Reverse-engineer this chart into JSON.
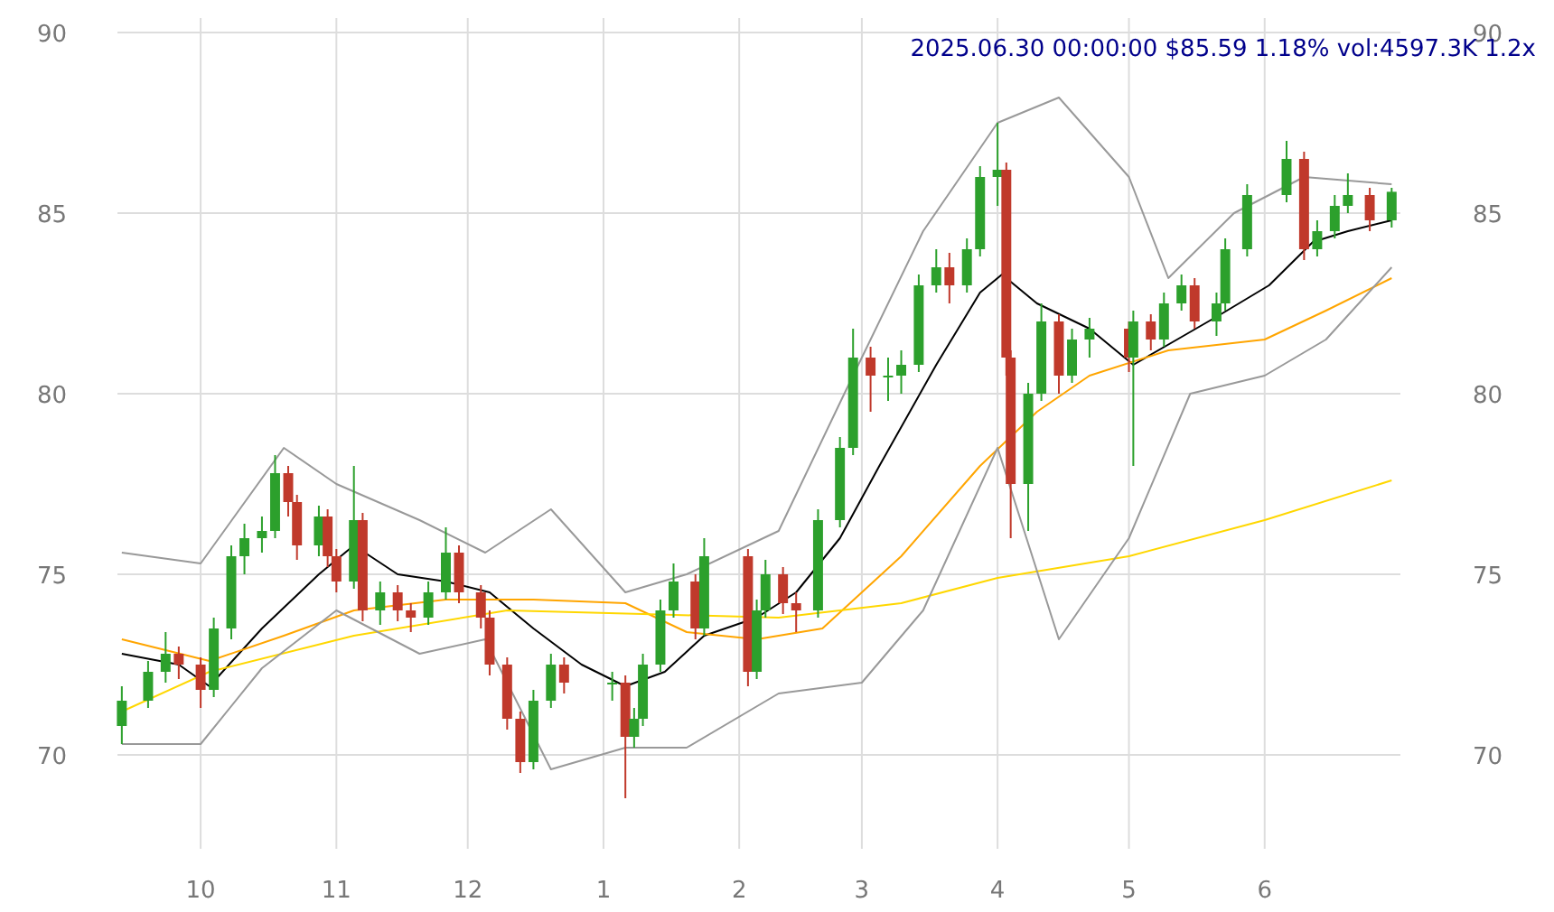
{
  "chart_data": {
    "type": "candlestick",
    "title": "2025.06.30 00:00:00 $85.59 1.18% vol:4597.3K 1.2x",
    "x": [
      "2024-09-13",
      "2024-09-19",
      "2024-09-23",
      "2024-09-26",
      "2024-10-01",
      "2024-10-04",
      "2024-10-08",
      "2024-10-11",
      "2024-10-15",
      "2024-10-18",
      "2024-10-21",
      "2024-10-23",
      "2024-10-28",
      "2024-10-30",
      "2024-11-01",
      "2024-11-05",
      "2024-11-07",
      "2024-11-11",
      "2024-11-15",
      "2024-11-18",
      "2024-11-22",
      "2024-11-26",
      "2024-11-29",
      "2024-12-04",
      "2024-12-06",
      "2024-12-10",
      "2024-12-13",
      "2024-12-16",
      "2024-12-20",
      "2024-12-23",
      "2025-01-03",
      "2025-01-06",
      "2025-01-08",
      "2025-01-10",
      "2025-01-14",
      "2025-01-17",
      "2025-01-22",
      "2025-01-24",
      "2025-02-03",
      "2025-02-05",
      "2025-02-07",
      "2025-02-11",
      "2025-02-14",
      "2025-02-19",
      "2025-02-24",
      "2025-02-27",
      "2025-03-03",
      "2025-03-07",
      "2025-03-10",
      "2025-03-14",
      "2025-03-18",
      "2025-03-21",
      "2025-03-25",
      "2025-03-28",
      "2025-04-01",
      "2025-04-03",
      "2025-04-04",
      "2025-04-08",
      "2025-04-11",
      "2025-04-15",
      "2025-04-18",
      "2025-04-22",
      "2025-05-01",
      "2025-05-02",
      "2025-05-06",
      "2025-05-09",
      "2025-05-13",
      "2025-05-16",
      "2025-05-21",
      "2025-05-23",
      "2025-05-28",
      "2025-06-06",
      "2025-06-10",
      "2025-06-13",
      "2025-06-17",
      "2025-06-20",
      "2025-06-25",
      "2025-06-30"
    ],
    "ohlc": [
      [
        70.8,
        71.9,
        70.3,
        71.5
      ],
      [
        71.5,
        72.6,
        71.3,
        72.3
      ],
      [
        72.3,
        73.4,
        72,
        72.8
      ],
      [
        72.8,
        73,
        72.1,
        72.5
      ],
      [
        72.5,
        72.7,
        71.3,
        71.8
      ],
      [
        71.8,
        73.8,
        71.6,
        73.5
      ],
      [
        73.5,
        75.8,
        73.2,
        75.5
      ],
      [
        75.5,
        76.4,
        75,
        76
      ],
      [
        76,
        76.6,
        75.6,
        76.2
      ],
      [
        76.2,
        78.3,
        76,
        77.8
      ],
      [
        77.8,
        78,
        76.6,
        77
      ],
      [
        77,
        77.2,
        75.4,
        75.8
      ],
      [
        75.8,
        76.9,
        75.5,
        76.6
      ],
      [
        76.6,
        76.8,
        75.2,
        75.5
      ],
      [
        75.5,
        75.7,
        74.5,
        74.8
      ],
      [
        74.8,
        78,
        74.6,
        76.5
      ],
      [
        76.5,
        76.7,
        73.7,
        74
      ],
      [
        74,
        74.8,
        73.6,
        74.5
      ],
      [
        74.5,
        74.7,
        73.7,
        74
      ],
      [
        74,
        74.2,
        73.4,
        73.8
      ],
      [
        73.8,
        74.8,
        73.6,
        74.5
      ],
      [
        74.5,
        76.3,
        74.3,
        75.6
      ],
      [
        75.6,
        75.8,
        74.2,
        74.5
      ],
      [
        74.5,
        74.7,
        73.5,
        73.8
      ],
      [
        73.8,
        74,
        72.2,
        72.5
      ],
      [
        72.5,
        72.7,
        70.7,
        71
      ],
      [
        71,
        71.2,
        69.5,
        69.8
      ],
      [
        69.8,
        71.8,
        69.6,
        71.5
      ],
      [
        71.5,
        72.8,
        71.3,
        72.5
      ],
      [
        72.5,
        72.7,
        71.7,
        72
      ],
      [
        72,
        72.3,
        71.5,
        72
      ],
      [
        72,
        72.2,
        68.8,
        70.5
      ],
      [
        70.5,
        71.3,
        70.2,
        71
      ],
      [
        71,
        72.8,
        70.8,
        72.5
      ],
      [
        72.5,
        74.3,
        72.3,
        74
      ],
      [
        74,
        75.3,
        73.8,
        74.8
      ],
      [
        74.8,
        75,
        73.2,
        73.5
      ],
      [
        73.5,
        76,
        73.3,
        75.5
      ],
      [
        75.5,
        75.7,
        71.9,
        72.3
      ],
      [
        72.3,
        74.3,
        72.1,
        74
      ],
      [
        74,
        75.4,
        73.8,
        75
      ],
      [
        75,
        75.2,
        73.9,
        74.2
      ],
      [
        74.2,
        74.5,
        73.4,
        74
      ],
      [
        74,
        76.8,
        73.8,
        76.5
      ],
      [
        76.5,
        78.8,
        76.3,
        78.5
      ],
      [
        78.5,
        81.8,
        78.3,
        81
      ],
      [
        81,
        81.3,
        79.5,
        80.5
      ],
      [
        80.5,
        81,
        79.8,
        80.5
      ],
      [
        80.5,
        81.2,
        80,
        80.8
      ],
      [
        80.8,
        83.3,
        80.6,
        83
      ],
      [
        83,
        84,
        82.8,
        83.5
      ],
      [
        83.5,
        83.9,
        82.5,
        83
      ],
      [
        83,
        84.3,
        82.8,
        84
      ],
      [
        84,
        86.3,
        83.8,
        86
      ],
      [
        86,
        87.5,
        85.2,
        86.2
      ],
      [
        86.2,
        86.4,
        80.5,
        81
      ],
      [
        81,
        81.2,
        76,
        77.5
      ],
      [
        77.5,
        80.3,
        76.2,
        80
      ],
      [
        80,
        82.5,
        79.8,
        82
      ],
      [
        82,
        82.2,
        80,
        80.5
      ],
      [
        80.5,
        81.8,
        80.3,
        81.5
      ],
      [
        81.5,
        82.1,
        81,
        81.8
      ],
      [
        81.8,
        82,
        80.6,
        81
      ],
      [
        81,
        82.3,
        78,
        82
      ],
      [
        82,
        82.2,
        81.2,
        81.5
      ],
      [
        81.5,
        82.8,
        81.3,
        82.5
      ],
      [
        82.5,
        83.3,
        82.3,
        83
      ],
      [
        83,
        83.2,
        81.8,
        82
      ],
      [
        82,
        82.8,
        81.6,
        82.5
      ],
      [
        82.5,
        84.3,
        82.3,
        84
      ],
      [
        84,
        85.8,
        83.8,
        85.5
      ],
      [
        85.5,
        87,
        85.3,
        86.5
      ],
      [
        86.5,
        86.7,
        83.7,
        84
      ],
      [
        84,
        84.8,
        83.8,
        84.5
      ],
      [
        84.5,
        85.5,
        84.3,
        85.2
      ],
      [
        85.2,
        86.1,
        85,
        85.5
      ],
      [
        85.5,
        85.7,
        84.5,
        84.8
      ],
      [
        84.8,
        85.7,
        84.6,
        85.59
      ]
    ],
    "series": [
      {
        "type": "line",
        "color": "#000000",
        "x": [
          "2024-09-13",
          "2024-09-26",
          "2024-10-03",
          "2024-10-15",
          "2024-10-28",
          "2024-11-05",
          "2024-11-15",
          "2024-11-26",
          "2024-12-06",
          "2024-12-16",
          "2024-12-27",
          "2025-01-06",
          "2025-01-15",
          "2025-01-24",
          "2025-02-05",
          "2025-02-14",
          "2025-02-24",
          "2025-03-05",
          "2025-03-18",
          "2025-03-28",
          "2025-04-02",
          "2025-04-10",
          "2025-04-22",
          "2025-05-02",
          "2025-05-12",
          "2025-05-22",
          "2025-06-02",
          "2025-06-12",
          "2025-06-20",
          "2025-06-30"
        ],
        "values": [
          72.8,
          72.5,
          71.9,
          73.5,
          75,
          75.8,
          75,
          74.8,
          74.5,
          73.5,
          72.5,
          71.9,
          72.3,
          73.3,
          73.8,
          74.5,
          76,
          78,
          80.8,
          82.8,
          83.3,
          82.5,
          81.8,
          80.8,
          81.5,
          82.2,
          83,
          84.2,
          84.5,
          84.8
        ]
      },
      {
        "type": "line",
        "color": "#ffa500",
        "x": [
          "2024-09-13",
          "2024-10-03",
          "2024-10-20",
          "2024-11-05",
          "2024-11-26",
          "2024-12-16",
          "2025-01-06",
          "2025-01-20",
          "2025-02-05",
          "2025-02-20",
          "2025-03-10",
          "2025-03-28",
          "2025-04-10",
          "2025-04-22",
          "2025-05-10",
          "2025-06-01",
          "2025-06-15",
          "2025-06-30"
        ],
        "values": [
          73.2,
          72.6,
          73.3,
          74,
          74.3,
          74.3,
          74.2,
          73.4,
          73.2,
          73.5,
          75.5,
          78,
          79.5,
          80.5,
          81.2,
          81.5,
          82.3,
          83.2
        ]
      },
      {
        "type": "line",
        "color": "#ffd700",
        "x": [
          "2024-09-13",
          "2024-10-03",
          "2024-11-05",
          "2024-12-10",
          "2025-01-10",
          "2025-02-10",
          "2025-03-10",
          "2025-04-01",
          "2025-05-01",
          "2025-06-01",
          "2025-06-30"
        ],
        "values": [
          71.2,
          72.3,
          73.3,
          74,
          73.9,
          73.8,
          74.2,
          74.9,
          75.5,
          76.5,
          77.6
        ]
      },
      {
        "type": "line",
        "color": "#999999",
        "x": [
          "2024-09-13",
          "2024-10-01",
          "2024-10-20",
          "2024-11-01",
          "2024-11-20",
          "2024-12-05",
          "2024-12-20",
          "2025-01-06",
          "2025-01-20",
          "2025-02-10",
          "2025-02-25",
          "2025-03-15",
          "2025-04-01",
          "2025-04-15",
          "2025-05-01",
          "2025-05-10",
          "2025-05-25",
          "2025-06-10",
          "2025-06-30"
        ],
        "values": [
          75.6,
          75.3,
          78.5,
          77.5,
          76.5,
          75.6,
          76.8,
          74.5,
          75,
          76.2,
          80,
          84.5,
          87.5,
          88.2,
          86,
          83.2,
          85,
          86,
          85.8
        ]
      },
      {
        "type": "line",
        "color": "#999999",
        "x": [
          "2024-09-13",
          "2024-10-01",
          "2024-10-15",
          "2024-11-01",
          "2024-11-20",
          "2024-12-05",
          "2024-12-20",
          "2025-01-06",
          "2025-01-20",
          "2025-02-10",
          "2025-03-01",
          "2025-03-15",
          "2025-04-01",
          "2025-04-15",
          "2025-05-01",
          "2025-05-15",
          "2025-06-01",
          "2025-06-15",
          "2025-06-30"
        ],
        "values": [
          70.3,
          70.3,
          72.4,
          74,
          72.8,
          73.2,
          69.6,
          70.2,
          70.2,
          71.7,
          72,
          74,
          78.5,
          73.2,
          76,
          80,
          80.5,
          81.5,
          83.5
        ]
      }
    ],
    "xlim": [
      "2024-09-12",
      "2025-07-02"
    ],
    "xticks": [
      {
        "value": "2024-10-01",
        "label": "10"
      },
      {
        "value": "2024-11-01",
        "label": "11"
      },
      {
        "value": "2024-12-01",
        "label": "12"
      },
      {
        "value": "2025-01-01",
        "label": "1"
      },
      {
        "value": "2025-02-01",
        "label": "2"
      },
      {
        "value": "2025-03-01",
        "label": "3"
      },
      {
        "value": "2025-04-01",
        "label": "4"
      },
      {
        "value": "2025-05-01",
        "label": "5"
      },
      {
        "value": "2025-06-01",
        "label": "6"
      }
    ],
    "ylim": [
      67.4,
      90.4
    ],
    "yticks": [
      70,
      75,
      80,
      85,
      90
    ],
    "y2lim": [
      67.4,
      90.4
    ],
    "y2ticks": [
      70,
      75,
      80,
      85,
      90
    ],
    "grid": true
  }
}
